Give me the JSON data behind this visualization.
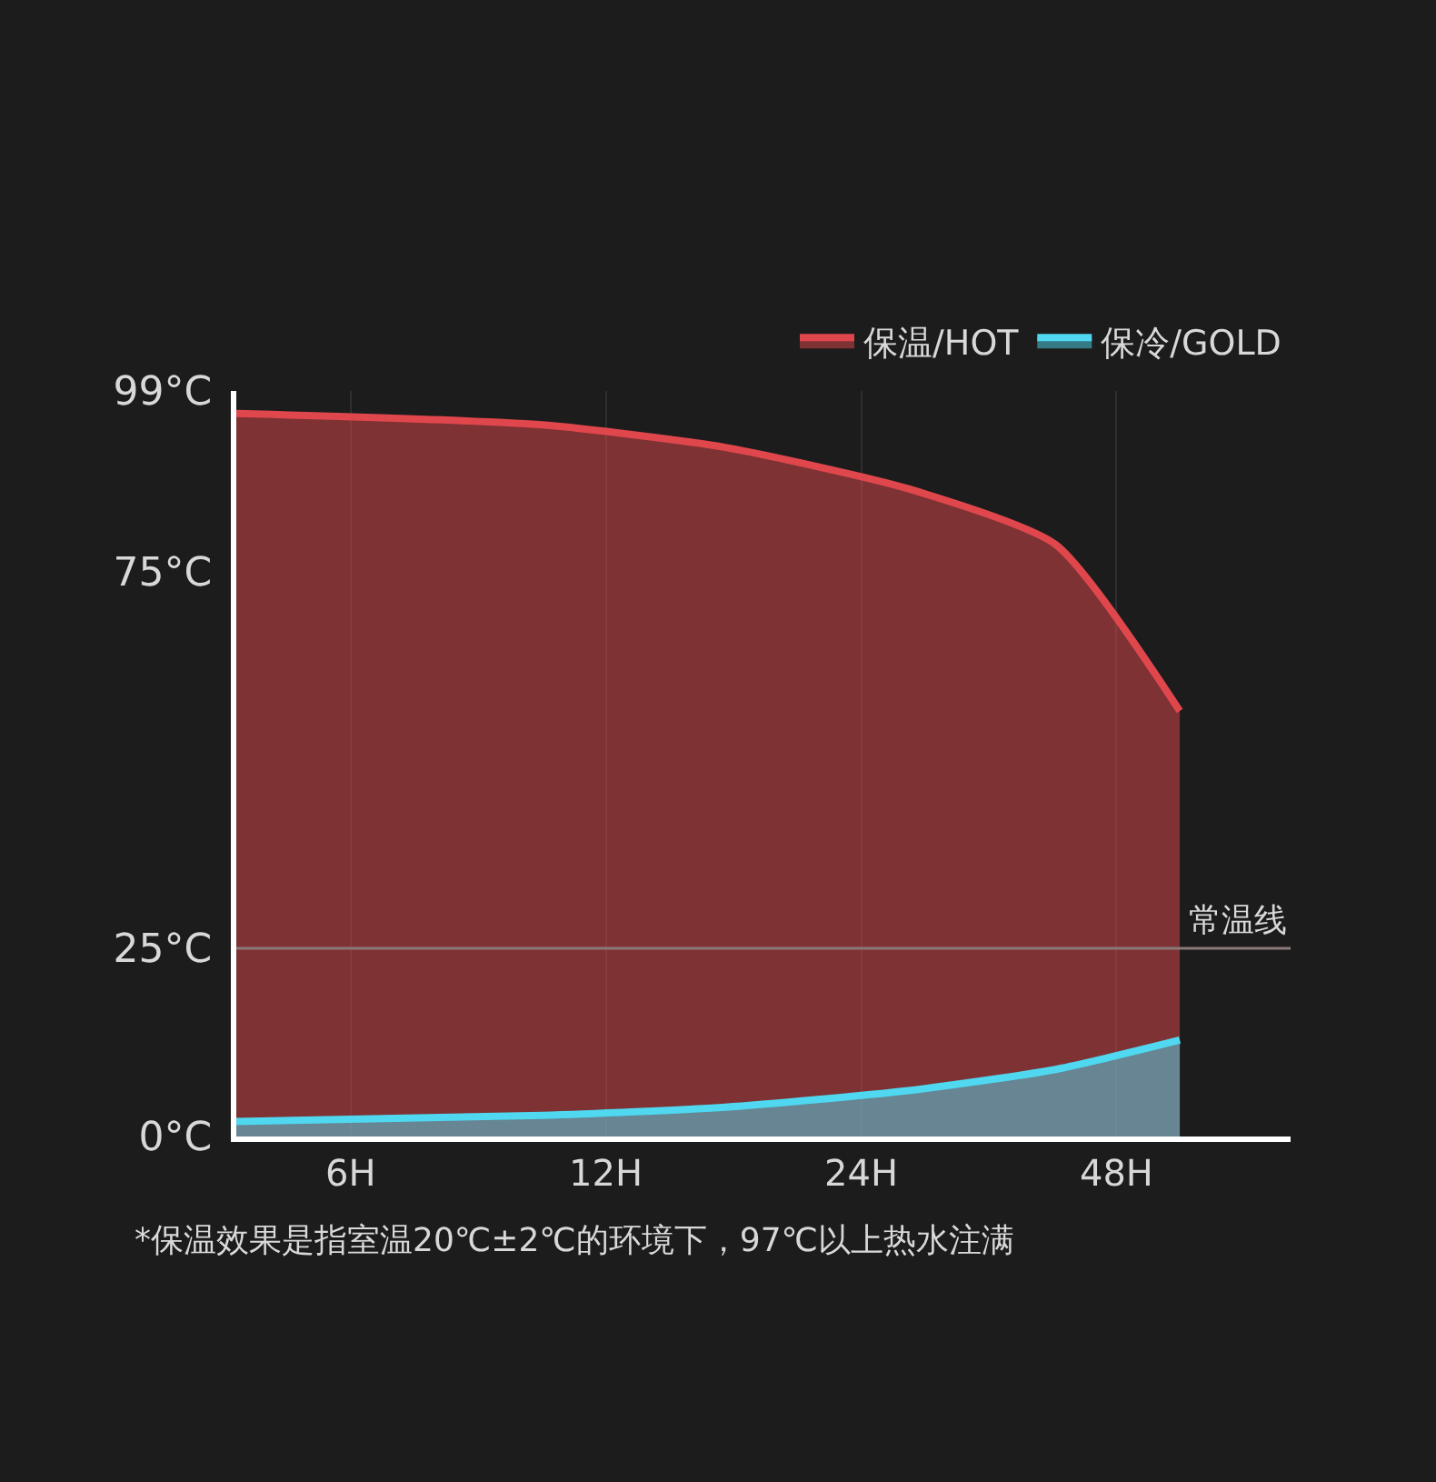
{
  "chart_data": {
    "type": "area",
    "x": [
      4.4,
      10.1,
      16.6,
      27.3,
      40.7,
      57
    ],
    "series": [
      {
        "name": "保温/HOT",
        "color": "#e0474c",
        "values": [
          96,
          94.5,
          91.5,
          86,
          78.6,
          56.5
        ]
      },
      {
        "name": "保冷/GOLD",
        "color": "#4fd8f0",
        "values": [
          2.0,
          2.8,
          3.9,
          6.1,
          8.9,
          12.8
        ]
      }
    ],
    "log": "x",
    "xlim": [
      4.4,
      77
    ],
    "xticks": [
      {
        "value": 6,
        "label": "6H"
      },
      {
        "value": 12,
        "label": "12H"
      },
      {
        "value": 24,
        "label": "24H"
      },
      {
        "value": 48,
        "label": "48H"
      }
    ],
    "ylim": [
      0,
      99
    ],
    "yticks": [
      {
        "value": 0,
        "label": "0°C"
      },
      {
        "value": 25,
        "label": "25°C"
      },
      {
        "value": 75,
        "label": "75°C"
      },
      {
        "value": 99,
        "label": "99°C"
      }
    ],
    "ref_lines": [
      {
        "axis": "y",
        "value": 25,
        "label": "常温线",
        "color": "#8a7878"
      }
    ],
    "grid": "x",
    "legend": "top right",
    "annotations": [
      "*保温效果是指室温20℃±2℃的环境下，97℃以上热水注满"
    ]
  }
}
